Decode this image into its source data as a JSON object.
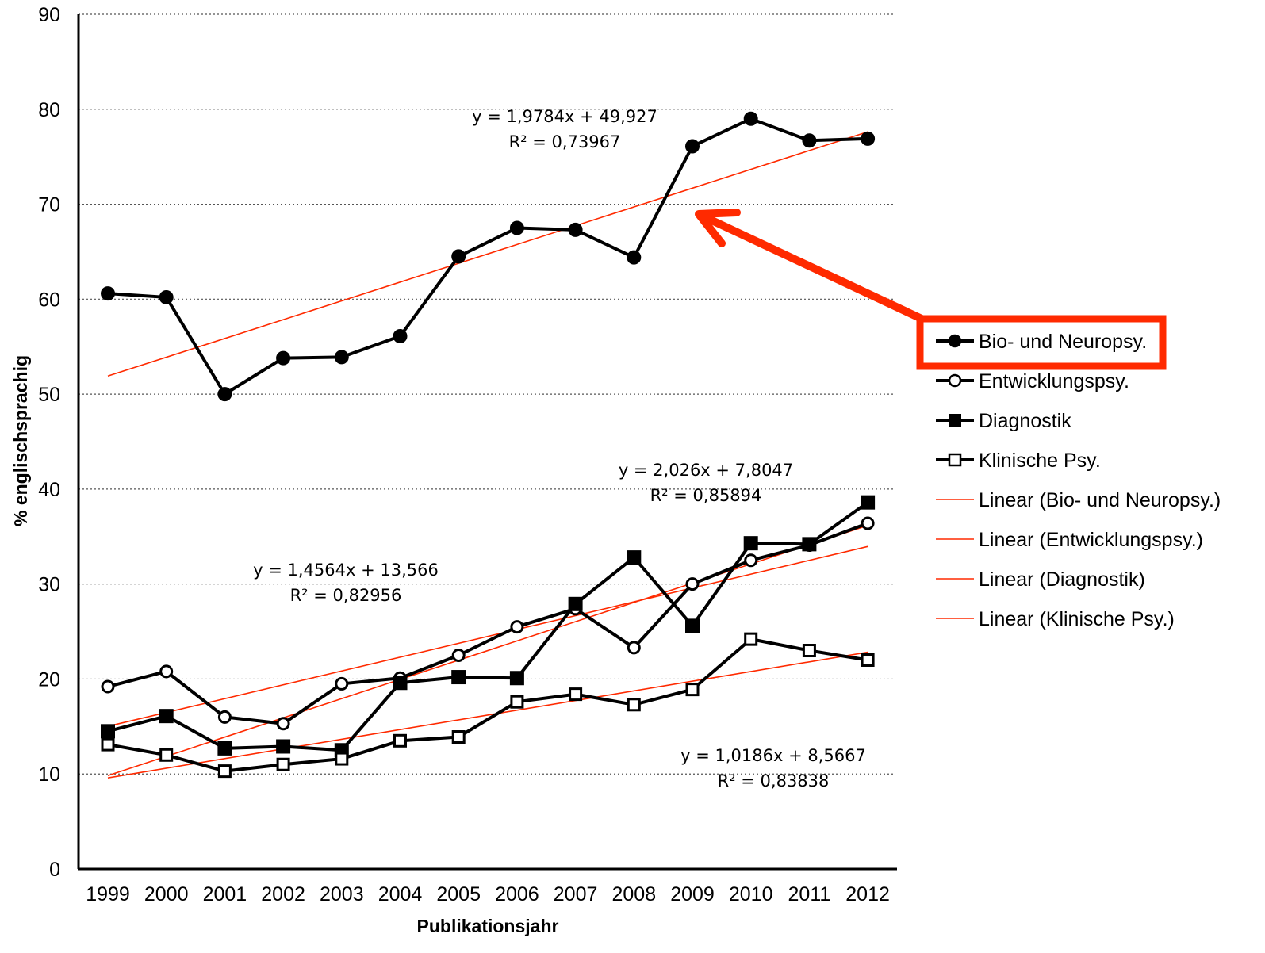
{
  "chart_data": {
    "type": "line",
    "xlabel": "Publikationsjahr",
    "ylabel": "% englischsprachig",
    "ylim": [
      0,
      90
    ],
    "yticks": [
      "0",
      "10",
      "20",
      "30",
      "40",
      "50",
      "60",
      "70",
      "80",
      "90"
    ],
    "categories": [
      "1999",
      "2000",
      "2001",
      "2002",
      "2003",
      "2004",
      "2005",
      "2006",
      "2007",
      "2008",
      "2009",
      "2010",
      "2011",
      "2012"
    ],
    "grid": "horizontal dotted",
    "legend_position": "right",
    "series": [
      {
        "name": "Bio- und Neuropsy.",
        "marker": "filled-circle",
        "color": "#000000",
        "values": [
          60.6,
          60.2,
          50.0,
          53.8,
          53.9,
          56.1,
          64.5,
          67.5,
          67.3,
          64.4,
          76.1,
          79.0,
          76.7,
          76.9
        ],
        "trend": {
          "name": "Linear (Bio- und Neuropsy.)",
          "slope": 1.9784,
          "intercept": 49.927,
          "equation": "y = 1,9784x + 49,927",
          "r2": "R² = 0,73967"
        }
      },
      {
        "name": "Entwicklungspsy.",
        "marker": "open-circle",
        "color": "#000000",
        "values": [
          19.2,
          20.8,
          16.0,
          15.3,
          19.5,
          20.1,
          22.5,
          25.5,
          27.4,
          23.3,
          30.0,
          32.5,
          34.1,
          36.4
        ],
        "trend": {
          "name": "Linear (Entwicklungspsy.)",
          "slope": 1.4564,
          "intercept": 13.566,
          "equation": "y = 1,4564x + 13,566",
          "r2": "R² = 0,82956"
        }
      },
      {
        "name": "Diagnostik",
        "marker": "filled-square",
        "color": "#000000",
        "values": [
          14.5,
          16.1,
          12.7,
          12.9,
          12.5,
          19.6,
          20.2,
          20.1,
          27.9,
          32.8,
          25.6,
          34.3,
          34.2,
          38.6
        ],
        "trend": {
          "name": "Linear (Diagnostik)",
          "slope": 2.026,
          "intercept": 7.8047,
          "equation": "y = 2,026x + 7,8047",
          "r2": "R² = 0,85894"
        }
      },
      {
        "name": "Klinische Psy.",
        "marker": "open-square",
        "color": "#000000",
        "values": [
          13.1,
          12.0,
          10.3,
          11.0,
          11.6,
          13.5,
          13.9,
          17.6,
          18.4,
          17.3,
          18.9,
          24.2,
          23.0,
          22.0
        ],
        "trend": {
          "name": "Linear (Klinische Psy.)",
          "slope": 1.0186,
          "intercept": 8.5667,
          "equation": "y = 1,0186x + 8,5667",
          "r2": "R² = 0,83838"
        }
      }
    ],
    "trendline_color": "#ff2a00",
    "highlight_color": "#ff2a00"
  }
}
